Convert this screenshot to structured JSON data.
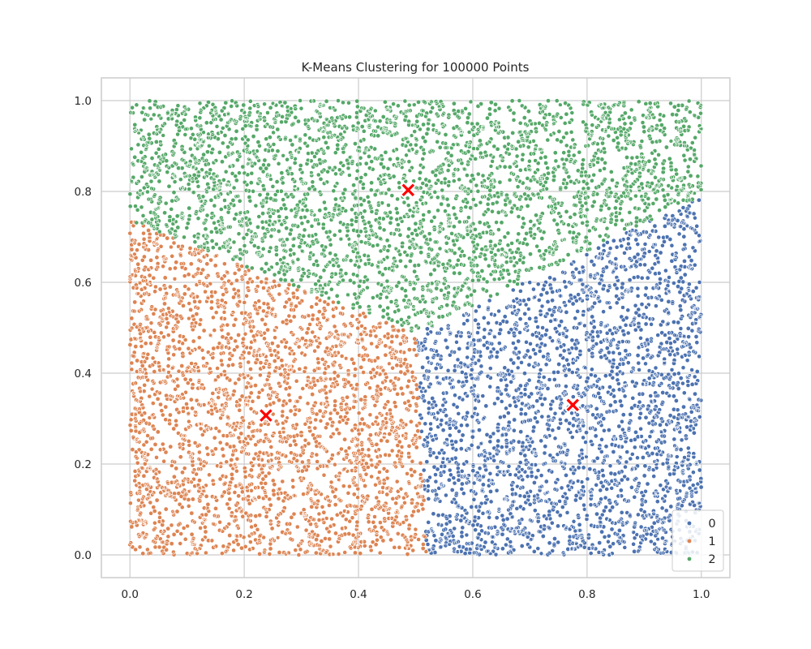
{
  "chart_data": {
    "type": "scatter",
    "title": "K-Means Clustering for 100000 Points",
    "xlabel": "",
    "ylabel": "",
    "xlim": [
      -0.05,
      1.05
    ],
    "ylim": [
      -0.05,
      1.05
    ],
    "xticks": [
      0.0,
      0.2,
      0.4,
      0.6,
      0.8,
      1.0
    ],
    "yticks": [
      0.0,
      0.2,
      0.4,
      0.6,
      0.8,
      1.0
    ],
    "xtick_labels": [
      "0.0",
      "0.2",
      "0.4",
      "0.6",
      "0.8",
      "1.0"
    ],
    "ytick_labels": [
      "0.0",
      "0.2",
      "0.4",
      "0.6",
      "0.8",
      "1.0"
    ],
    "grid": true,
    "point_count": 100000,
    "points_domain": {
      "x": [
        0,
        1
      ],
      "y": [
        0,
        1
      ]
    },
    "series": [
      {
        "name": "0",
        "color": "#4c72b0",
        "centroid": [
          0.775,
          0.33
        ]
      },
      {
        "name": "1",
        "color": "#dd8452",
        "centroid": [
          0.238,
          0.307
        ]
      },
      {
        "name": "2",
        "color": "#55a868",
        "centroid": [
          0.487,
          0.803
        ]
      }
    ],
    "centroid_marker": {
      "shape": "X",
      "color": "#ff0000"
    },
    "legend": {
      "position": "lower-right",
      "entries": [
        "0",
        "1",
        "2"
      ]
    }
  }
}
